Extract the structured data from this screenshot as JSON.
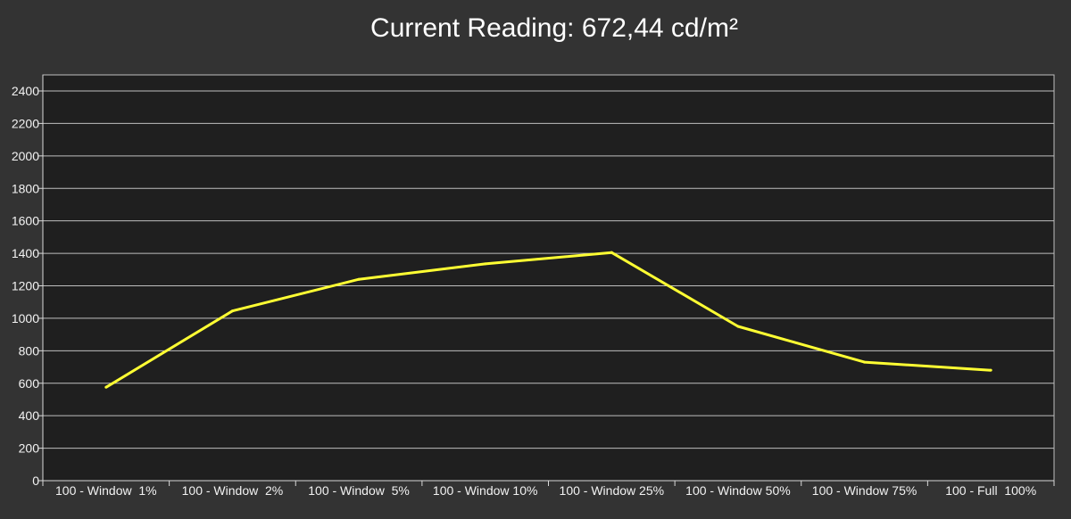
{
  "colors": {
    "background": "#333333",
    "plot_background": "#1f1f1f",
    "grid": "#bfbfbf",
    "axis": "#d9d9d9",
    "text": "#f2f2f2",
    "series": "#ffff33"
  },
  "chart_data": {
    "type": "line",
    "title": "Current Reading: 672,44 cd/m²",
    "xlabel": "",
    "ylabel": "",
    "grid": true,
    "legend": "none",
    "ylim": [
      0,
      2400
    ],
    "yticks": [
      0,
      200,
      400,
      600,
      800,
      1000,
      1200,
      1400,
      1600,
      1800,
      2000,
      2200,
      2400
    ],
    "categories": [
      "100 - Window  1%",
      "100 - Window  2%",
      "100 - Window  5%",
      "100 - Window 10%",
      "100 - Window 25%",
      "100 - Window 50%",
      "100 - Window 75%",
      "100 - Full  100%"
    ],
    "series": [
      {
        "values": [
          575,
          1045,
          1240,
          1335,
          1405,
          950,
          730,
          680
        ]
      }
    ]
  }
}
